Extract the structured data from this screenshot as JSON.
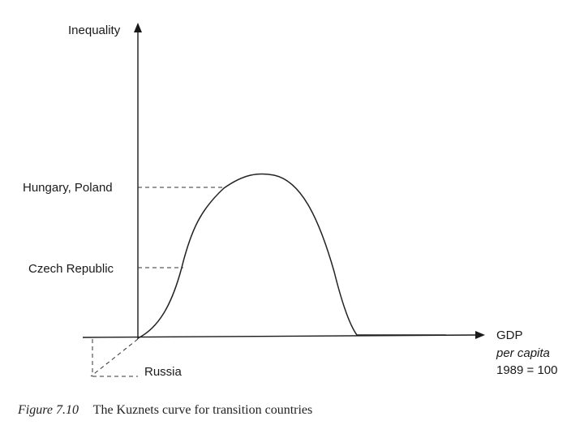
{
  "diagram": {
    "y_axis_label": "Inequality",
    "x_axis_label": [
      "GDP",
      "per capita",
      "1989 = 100"
    ],
    "levels": {
      "hungary_poland": "Hungary, Poland",
      "czech_republic": "Czech Republic",
      "russia": "Russia"
    }
  },
  "caption": {
    "figure_number": "Figure 7.10",
    "text": "The Kuznets curve for transition countries"
  }
}
